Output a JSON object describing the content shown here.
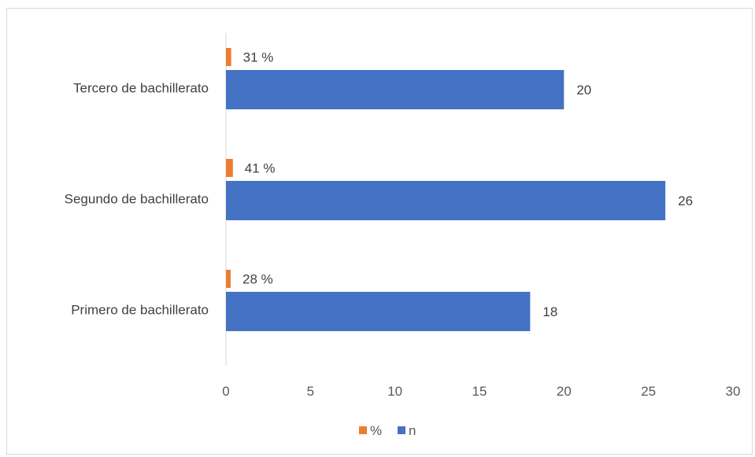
{
  "chart_data": {
    "type": "bar",
    "orientation": "horizontal",
    "categories": [
      "Tercero de bachillerato",
      "Segundo de bachillerato",
      "Primero de bachillerato"
    ],
    "series": [
      {
        "name": "%",
        "values": [
          0.31,
          0.41,
          0.28
        ],
        "labels": [
          "31 %",
          "41 %",
          "28 %"
        ],
        "color": "#ED7D31"
      },
      {
        "name": "n",
        "values": [
          20,
          26,
          18
        ],
        "labels": [
          "20",
          "26",
          "18"
        ],
        "color": "#4472C4"
      }
    ],
    "xticks": [
      "0",
      "5",
      "10",
      "15",
      "20",
      "25",
      "30"
    ],
    "xlim": [
      0,
      30
    ],
    "title": "",
    "xlabel": "",
    "ylabel": "",
    "grid": false,
    "legend_position": "bottom"
  }
}
